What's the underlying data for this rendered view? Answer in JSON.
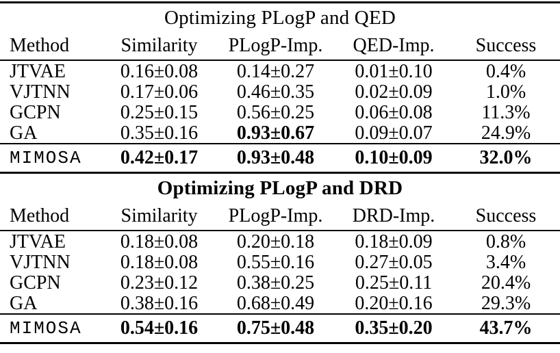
{
  "page": {
    "background_color": "#ffffff",
    "text_color": "#000000",
    "rule_color": "#000000"
  },
  "tables": [
    {
      "title": "Optimizing PLogP and QED",
      "columns": [
        "Method",
        "Similarity",
        "PLogP-Imp.",
        "QED-Imp.",
        "Success"
      ],
      "rows": [
        {
          "method": "JTVAE",
          "similarity": "0.16±0.08",
          "obj1": "0.14±0.27",
          "obj2": "0.01±0.10",
          "success": "0.4%"
        },
        {
          "method": "VJTNN",
          "similarity": "0.17±0.06",
          "obj1": "0.46±0.35",
          "obj2": "0.02±0.09",
          "success": "1.0%"
        },
        {
          "method": "GCPN",
          "similarity": "0.25±0.15",
          "obj1": "0.56±0.25",
          "obj2": "0.06±0.08",
          "success": "11.3%"
        },
        {
          "method": "GA",
          "similarity": "0.35±0.16",
          "obj1": "0.93±0.67",
          "obj2": "0.09±0.07",
          "success": "24.9%"
        }
      ],
      "highlight_row": {
        "method": "MIMOSA",
        "similarity": "0.42±0.17",
        "obj1": "0.93±0.48",
        "obj2": "0.10±0.09",
        "success": "32.0%"
      }
    },
    {
      "title": "Optimizing PLogP and DRD",
      "columns": [
        "Method",
        "Similarity",
        "PLogP-Imp.",
        "DRD-Imp.",
        "Success"
      ],
      "rows": [
        {
          "method": "JTVAE",
          "similarity": "0.18±0.08",
          "obj1": "0.20±0.18",
          "obj2": "0.18±0.09",
          "success": "0.8%"
        },
        {
          "method": "VJTNN",
          "similarity": "0.18±0.08",
          "obj1": "0.55±0.16",
          "obj2": "0.27±0.05",
          "success": "3.4%"
        },
        {
          "method": "GCPN",
          "similarity": "0.23±0.12",
          "obj1": "0.38±0.25",
          "obj2": "0.25±0.11",
          "success": "20.4%"
        },
        {
          "method": "GA",
          "similarity": "0.38±0.16",
          "obj1": "0.68±0.49",
          "obj2": "0.20±0.16",
          "success": "29.3%"
        }
      ],
      "highlight_row": {
        "method": "MIMOSA",
        "similarity": "0.54±0.16",
        "obj1": "0.75±0.48",
        "obj2": "0.35±0.20",
        "success": "43.7%"
      }
    }
  ]
}
